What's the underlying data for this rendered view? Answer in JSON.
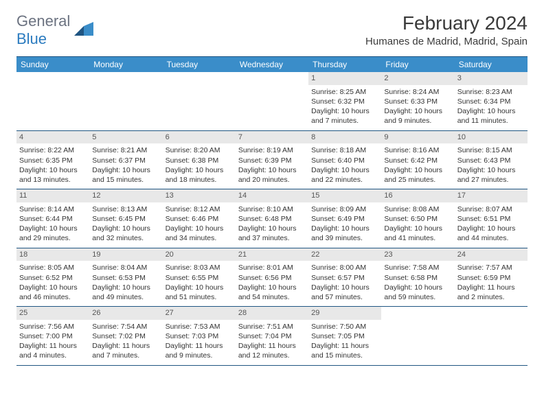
{
  "logo": {
    "textGray": "General",
    "textBlue": "Blue"
  },
  "title": "February 2024",
  "location": "Humanes de Madrid, Madrid, Spain",
  "colors": {
    "headerBg": "#3a8dc9",
    "borderDark": "#1f5582",
    "dayNumBg": "#e8e8e8",
    "logoBlue": "#2b7bbf",
    "logoGray": "#6b7280"
  },
  "dayNames": [
    "Sunday",
    "Monday",
    "Tuesday",
    "Wednesday",
    "Thursday",
    "Friday",
    "Saturday"
  ],
  "firstDayOffset": 4,
  "days": [
    {
      "n": 1,
      "sunrise": "8:25 AM",
      "sunset": "6:32 PM",
      "daylight": "10 hours and 7 minutes."
    },
    {
      "n": 2,
      "sunrise": "8:24 AM",
      "sunset": "6:33 PM",
      "daylight": "10 hours and 9 minutes."
    },
    {
      "n": 3,
      "sunrise": "8:23 AM",
      "sunset": "6:34 PM",
      "daylight": "10 hours and 11 minutes."
    },
    {
      "n": 4,
      "sunrise": "8:22 AM",
      "sunset": "6:35 PM",
      "daylight": "10 hours and 13 minutes."
    },
    {
      "n": 5,
      "sunrise": "8:21 AM",
      "sunset": "6:37 PM",
      "daylight": "10 hours and 15 minutes."
    },
    {
      "n": 6,
      "sunrise": "8:20 AM",
      "sunset": "6:38 PM",
      "daylight": "10 hours and 18 minutes."
    },
    {
      "n": 7,
      "sunrise": "8:19 AM",
      "sunset": "6:39 PM",
      "daylight": "10 hours and 20 minutes."
    },
    {
      "n": 8,
      "sunrise": "8:18 AM",
      "sunset": "6:40 PM",
      "daylight": "10 hours and 22 minutes."
    },
    {
      "n": 9,
      "sunrise": "8:16 AM",
      "sunset": "6:42 PM",
      "daylight": "10 hours and 25 minutes."
    },
    {
      "n": 10,
      "sunrise": "8:15 AM",
      "sunset": "6:43 PM",
      "daylight": "10 hours and 27 minutes."
    },
    {
      "n": 11,
      "sunrise": "8:14 AM",
      "sunset": "6:44 PM",
      "daylight": "10 hours and 29 minutes."
    },
    {
      "n": 12,
      "sunrise": "8:13 AM",
      "sunset": "6:45 PM",
      "daylight": "10 hours and 32 minutes."
    },
    {
      "n": 13,
      "sunrise": "8:12 AM",
      "sunset": "6:46 PM",
      "daylight": "10 hours and 34 minutes."
    },
    {
      "n": 14,
      "sunrise": "8:10 AM",
      "sunset": "6:48 PM",
      "daylight": "10 hours and 37 minutes."
    },
    {
      "n": 15,
      "sunrise": "8:09 AM",
      "sunset": "6:49 PM",
      "daylight": "10 hours and 39 minutes."
    },
    {
      "n": 16,
      "sunrise": "8:08 AM",
      "sunset": "6:50 PM",
      "daylight": "10 hours and 41 minutes."
    },
    {
      "n": 17,
      "sunrise": "8:07 AM",
      "sunset": "6:51 PM",
      "daylight": "10 hours and 44 minutes."
    },
    {
      "n": 18,
      "sunrise": "8:05 AM",
      "sunset": "6:52 PM",
      "daylight": "10 hours and 46 minutes."
    },
    {
      "n": 19,
      "sunrise": "8:04 AM",
      "sunset": "6:53 PM",
      "daylight": "10 hours and 49 minutes."
    },
    {
      "n": 20,
      "sunrise": "8:03 AM",
      "sunset": "6:55 PM",
      "daylight": "10 hours and 51 minutes."
    },
    {
      "n": 21,
      "sunrise": "8:01 AM",
      "sunset": "6:56 PM",
      "daylight": "10 hours and 54 minutes."
    },
    {
      "n": 22,
      "sunrise": "8:00 AM",
      "sunset": "6:57 PM",
      "daylight": "10 hours and 57 minutes."
    },
    {
      "n": 23,
      "sunrise": "7:58 AM",
      "sunset": "6:58 PM",
      "daylight": "10 hours and 59 minutes."
    },
    {
      "n": 24,
      "sunrise": "7:57 AM",
      "sunset": "6:59 PM",
      "daylight": "11 hours and 2 minutes."
    },
    {
      "n": 25,
      "sunrise": "7:56 AM",
      "sunset": "7:00 PM",
      "daylight": "11 hours and 4 minutes."
    },
    {
      "n": 26,
      "sunrise": "7:54 AM",
      "sunset": "7:02 PM",
      "daylight": "11 hours and 7 minutes."
    },
    {
      "n": 27,
      "sunrise": "7:53 AM",
      "sunset": "7:03 PM",
      "daylight": "11 hours and 9 minutes."
    },
    {
      "n": 28,
      "sunrise": "7:51 AM",
      "sunset": "7:04 PM",
      "daylight": "11 hours and 12 minutes."
    },
    {
      "n": 29,
      "sunrise": "7:50 AM",
      "sunset": "7:05 PM",
      "daylight": "11 hours and 15 minutes."
    }
  ],
  "labels": {
    "sunrise": "Sunrise:",
    "sunset": "Sunset:",
    "daylight": "Daylight:"
  }
}
